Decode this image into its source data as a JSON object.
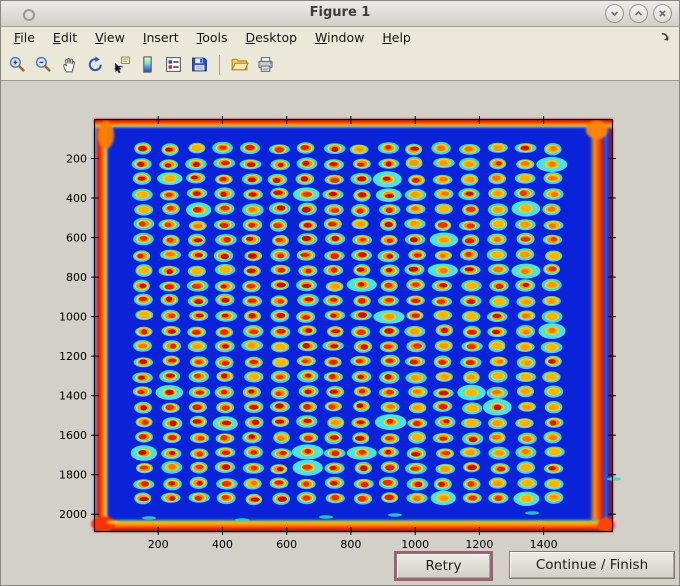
{
  "window": {
    "title": "Figure 1",
    "controls": [
      {
        "name": "minimize",
        "icon": "chevron-down-icon"
      },
      {
        "name": "maximize",
        "icon": "chevron-up-icon"
      },
      {
        "name": "close",
        "icon": "close-icon"
      }
    ]
  },
  "menu_bar": {
    "items": [
      {
        "label": "File"
      },
      {
        "label": "Edit"
      },
      {
        "label": "View"
      },
      {
        "label": "Insert"
      },
      {
        "label": "Tools"
      },
      {
        "label": "Desktop"
      },
      {
        "label": "Window"
      },
      {
        "label": "Help"
      }
    ],
    "dock_icon": "dock-figure-arrow-icon"
  },
  "toolbar": {
    "buttons": [
      {
        "name": "zoom-in"
      },
      {
        "name": "zoom-out"
      },
      {
        "name": "pan"
      },
      {
        "name": "rotate-3d"
      },
      {
        "name": "data-cursor"
      },
      {
        "name": "colorbar"
      },
      {
        "name": "legend"
      },
      {
        "name": "save"
      },
      {
        "sep": true
      },
      {
        "name": "open"
      },
      {
        "name": "print"
      }
    ]
  },
  "action_bar": {
    "retry_label": "Retry",
    "continue_label": "Continue / Finish"
  },
  "chart_data": {
    "type": "heatmap",
    "title": "",
    "description": "Jet-colormap intensity image of a scanned 384-spot assay plate: 16 columns x 24 rows of warm red/orange spots with cyan halos on a deep blue background, saturated red-orange glow along all four plate edges and a hot vertical band inside the right edge",
    "colormap": "jet",
    "xlim": [
      0,
      1616
    ],
    "ylim": [
      0,
      2090
    ],
    "x_ticks": [
      200,
      400,
      600,
      800,
      1000,
      1200,
      1400
    ],
    "y_ticks": [
      200,
      400,
      600,
      800,
      1000,
      1200,
      1400,
      1600,
      1800,
      2000
    ],
    "grid": false,
    "spot_grid": {
      "columns": 16,
      "rows": 24,
      "first_x": 150,
      "x_spacing": 85,
      "first_y": 150,
      "y_spacing": 77
    },
    "colors": {
      "background_blue": "#0a23d9",
      "halo_cyan": "#35d8f0",
      "ring_yellow": "#ffdf00",
      "ring_orange": "#ff9000",
      "spot_red": "#d81400",
      "edge_red": "#e81800",
      "edge_orange": "#ff7300",
      "figure_gray": "#d3d0c9",
      "chrome_beige": "#ebe8d9",
      "focus_pink": "#a9587b"
    }
  }
}
